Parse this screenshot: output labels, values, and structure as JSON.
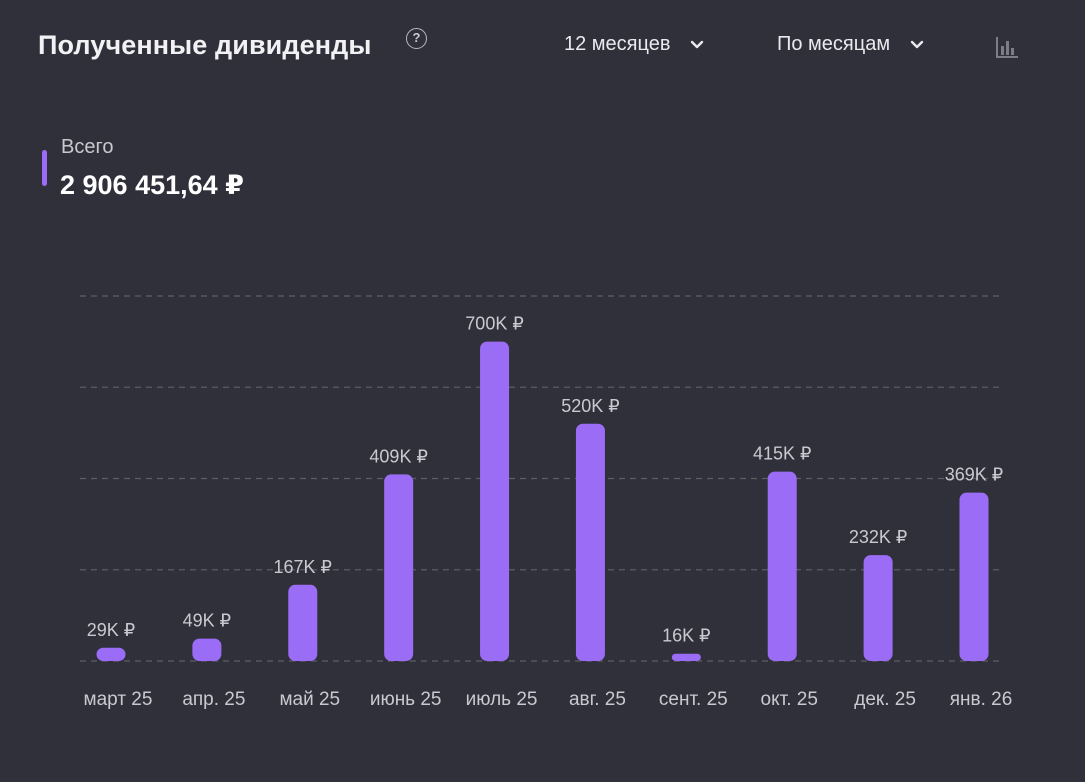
{
  "header": {
    "title": "Полученные дивиденды",
    "help_icon": "question-circle-icon",
    "period_label": "12 месяцев",
    "group_label": "По месяцам",
    "chart_type_icon": "bar-chart-icon"
  },
  "legend": {
    "label": "Всего",
    "value": "2 906 451,64 ₽",
    "color": "#9b6cf6"
  },
  "colors": {
    "background": "#30303a",
    "bar": "#9b6cf6",
    "grid": "#5c5c68",
    "label": "#c9c9d1"
  },
  "chart_data": {
    "type": "bar",
    "title": "",
    "xlabel": "",
    "ylabel": "",
    "categories": [
      "март 25",
      "апр. 25",
      "май 25",
      "июнь 25",
      "июль 25",
      "авг. 25",
      "сент. 25",
      "окт. 25",
      "дек. 25",
      "янв. 26"
    ],
    "values": [
      29,
      49,
      167,
      409,
      700,
      520,
      16,
      415,
      232,
      369
    ],
    "value_labels": [
      "29K ₽",
      "49K ₽",
      "167K ₽",
      "409K ₽",
      "700K ₽",
      "520K ₽",
      "16K ₽",
      "415K ₽",
      "232K ₽",
      "369K ₽"
    ],
    "unit": "тыс. ₽",
    "ylim": [
      0,
      800
    ],
    "grid": true,
    "legend": "top-left"
  }
}
